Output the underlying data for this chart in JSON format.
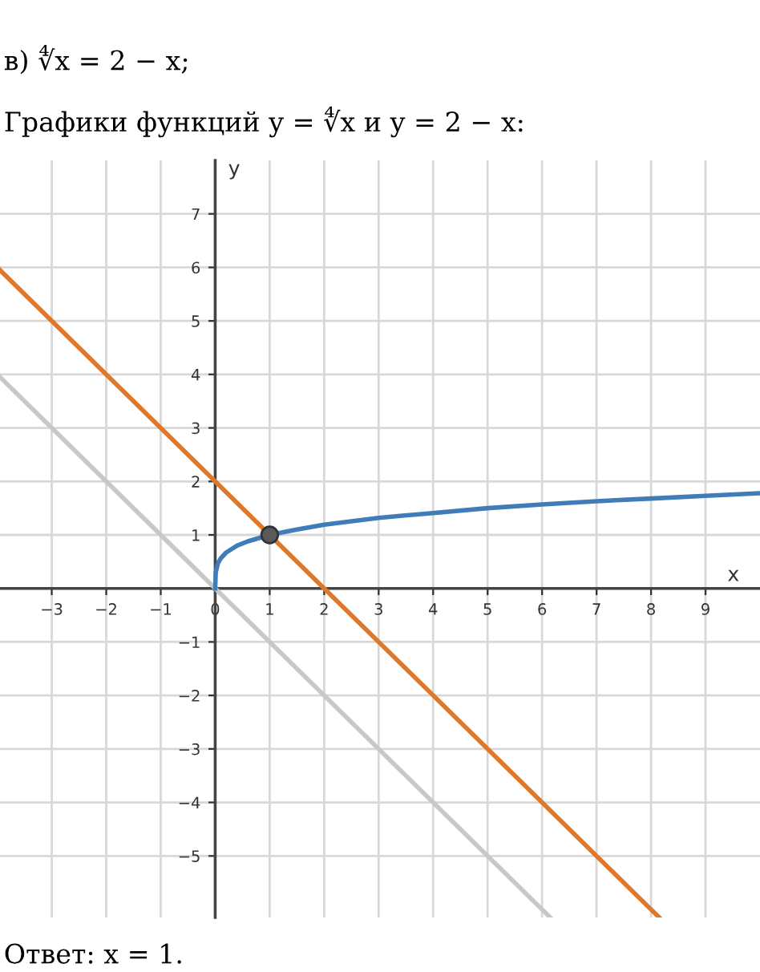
{
  "chart_data": {
    "type": "line",
    "title": "в) ∜x = 2 − x;",
    "subtitle": "Графики функций y = ∜x и y = 2 − x:",
    "xlabel": "x",
    "ylabel": "y",
    "annotations": [
      "Ответ: x = 1."
    ],
    "series": [
      {
        "color": "#c8c8c8",
        "x": [
          -3.95,
          6.15
        ],
        "values": [
          3.95,
          -6.15
        ]
      },
      {
        "color": "#e0782a",
        "x": [
          -3.95,
          8.15
        ],
        "values": [
          5.95,
          -6.15
        ]
      },
      {
        "color": "#3f7cb8",
        "x": [
          0,
          0.01,
          0.05,
          0.1,
          0.2,
          0.4,
          0.6,
          1,
          1.5,
          2,
          3,
          4,
          5,
          6,
          7,
          8,
          9,
          10
        ],
        "values": [
          0,
          0.3,
          0.47,
          0.56,
          0.67,
          0.8,
          0.88,
          1,
          1.1,
          1.19,
          1.32,
          1.41,
          1.5,
          1.57,
          1.63,
          1.68,
          1.73,
          1.78
        ]
      },
      {
        "type": "scatter",
        "color": "#5a5a5a",
        "marker": "circle",
        "x": [
          1
        ],
        "values": [
          1
        ]
      }
    ],
    "xlim": [
      -3.95,
      10
    ],
    "ylim": [
      -6.15,
      8
    ],
    "xticks": [
      {
        "value": -3,
        "label": "−3"
      },
      {
        "value": -2,
        "label": "−2"
      },
      {
        "value": -1,
        "label": "−1"
      },
      0,
      1,
      2,
      3,
      4,
      5,
      6,
      7,
      8,
      9
    ],
    "yticks": [
      {
        "value": -5,
        "label": "−5"
      },
      {
        "value": -4,
        "label": "−4"
      },
      {
        "value": -3,
        "label": "−3"
      },
      {
        "value": -2,
        "label": "−2"
      },
      {
        "value": -1,
        "label": "−1"
      },
      1,
      2,
      3,
      4,
      5,
      6,
      7
    ],
    "grid": true
  }
}
